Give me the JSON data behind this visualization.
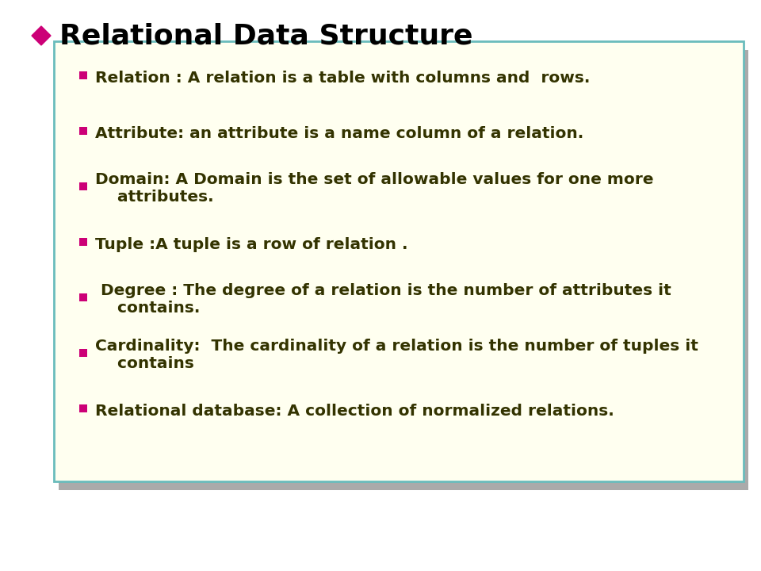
{
  "title": "Relational Data Structure",
  "title_color": "#000000",
  "title_fontsize": 26,
  "title_bold": true,
  "diamond_color": "#CC0077",
  "background_color": "#FFFFFF",
  "box_bg_color": "#FFFFF0",
  "box_border_color": "#6ABCBC",
  "box_shadow_color": "#AAAAAA",
  "bullet_color": "#CC0077",
  "text_color": "#333300",
  "text_fontsize": 14.5,
  "bullet_items": [
    "Relation : A relation is a table with columns and  rows.",
    "Attribute: an attribute is a name column of a relation.",
    "Domain: A Domain is the set of allowable values for one more\n    attributes.",
    "Tuple :A tuple is a row of relation .",
    " Degree : The degree of a relation is the number of attributes it\n    contains.",
    "Cardinality:  The cardinality of a relation is the number of tuples it\n    contains",
    "Relational database: A collection of normalized relations."
  ],
  "fig_width": 9.6,
  "fig_height": 7.2,
  "dpi": 100
}
